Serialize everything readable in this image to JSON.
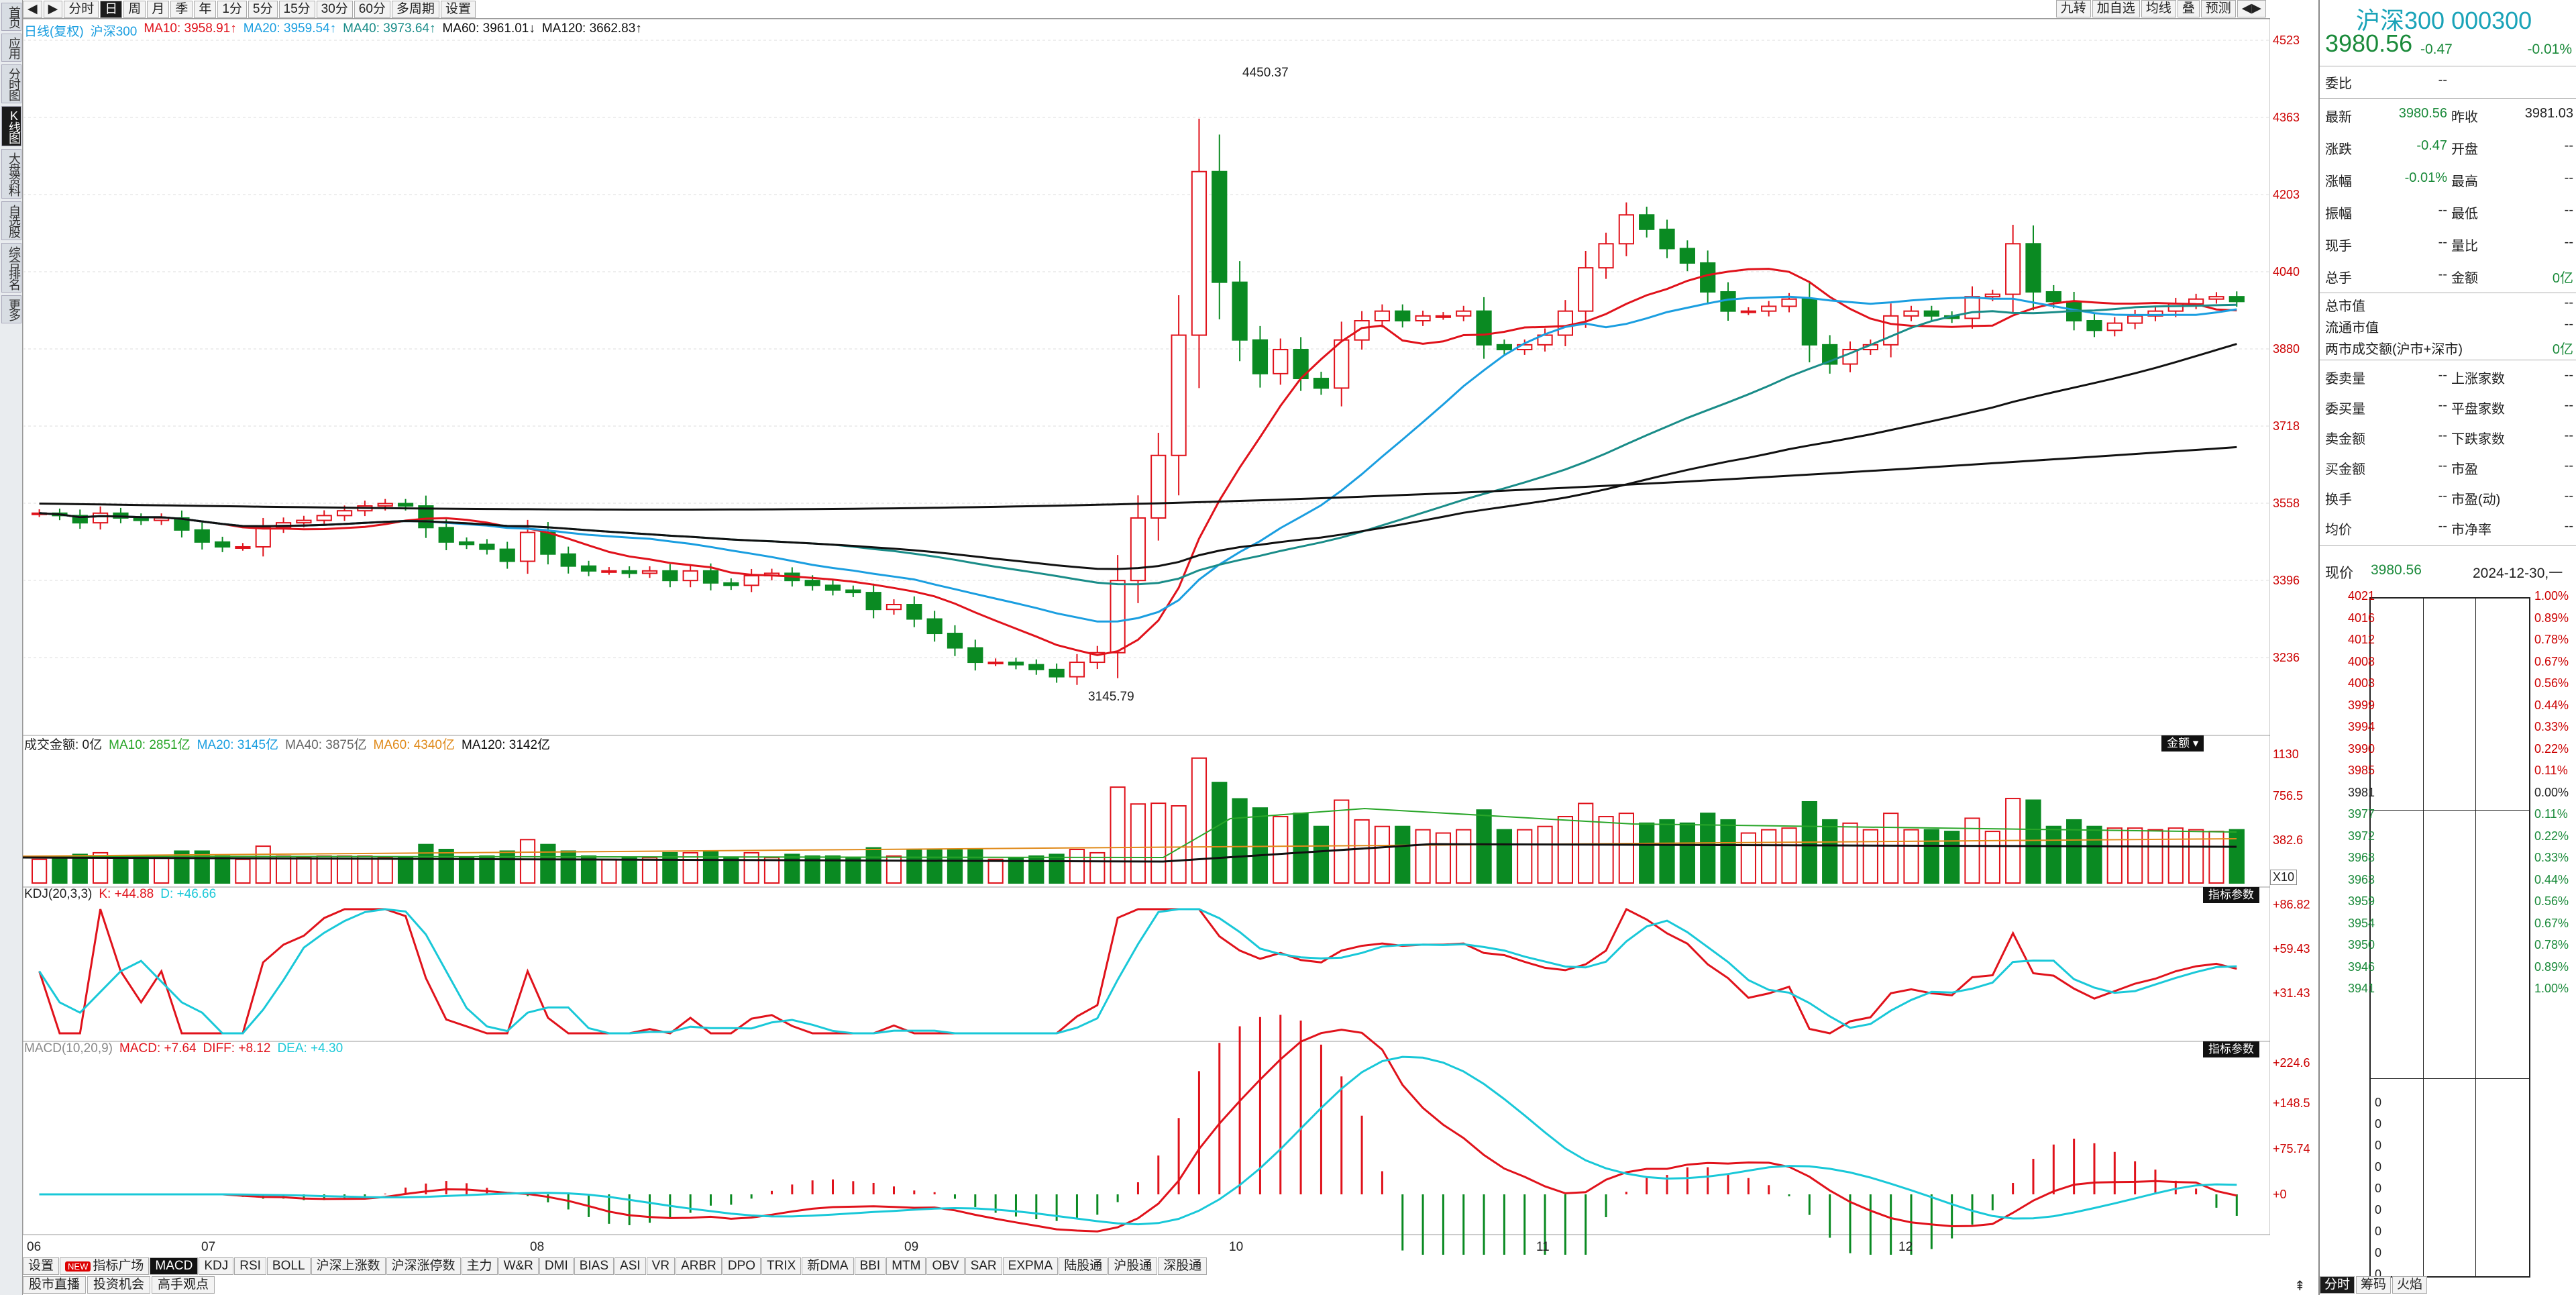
{
  "left_rail": [
    "首页",
    "应用",
    "分时图",
    "K线图",
    "大盘资料",
    "自选股",
    "综合排名",
    "更多"
  ],
  "left_rail_active": 3,
  "topbar": {
    "nav_icon_left": "◀",
    "nav_icon_right": "▶",
    "periods": [
      "分时",
      "日",
      "周",
      "月",
      "季",
      "年",
      "1分",
      "5分",
      "15分",
      "30分",
      "60分",
      "多周期",
      "设置"
    ],
    "active_period": 1,
    "right_buttons": [
      "九转",
      "加自选",
      "均线",
      "叠",
      "预测"
    ],
    "right_icon": "◀▶"
  },
  "main_legend": {
    "title": "日线(复权)",
    "name": "沪深300",
    "ma10": "MA10: 3958.91↑",
    "ma20": "MA20: 3959.54↑",
    "ma40": "MA40: 3973.64↑",
    "ma60": "MA60: 3961.01↓",
    "ma120": "MA120: 3662.83↑"
  },
  "price_axis": [
    "4523",
    "4363",
    "4203",
    "4040",
    "3880",
    "3718",
    "3558",
    "3396",
    "3236"
  ],
  "annotations": {
    "high": "4450.37",
    "low": "3145.79"
  },
  "x_labels": [
    "06",
    "07",
    "08",
    "09",
    "10",
    "11",
    "12"
  ],
  "volume_legend": {
    "label": "成交金额: 0亿",
    "ma10": "MA10: 2851亿",
    "ma20": "MA20: 3145亿",
    "ma40": "MA40: 3875亿",
    "ma60": "MA60: 4340亿",
    "ma120": "MA120: 3142亿"
  },
  "volume_axis": [
    "1130",
    "756.5",
    "382.6",
    "X10"
  ],
  "volume_tag": "金额",
  "kdj_legend": {
    "label": "KDJ(20,3,3)",
    "k": "K: +44.88",
    "d": "D: +46.66"
  },
  "kdj_axis": [
    "+86.82",
    "+59.43",
    "+31.43"
  ],
  "macd_legend": {
    "label": "MACD(10,20,9)",
    "macd": "MACD: +7.64",
    "diff": "DIFF: +8.12",
    "dea": "DEA: +4.30"
  },
  "macd_axis": [
    "+224.6",
    "+148.5",
    "+75.74",
    "+0"
  ],
  "indicator_tag": "指标参数",
  "indicator_tabs": [
    "设置",
    "指标广场",
    "MACD",
    "KDJ",
    "RSI",
    "BOLL",
    "沪深上涨数",
    "沪深涨停数",
    "主力",
    "W&R",
    "DMI",
    "BIAS",
    "ASI",
    "VR",
    "ARBR",
    "DPO",
    "TRIX",
    "新DMA",
    "BBI",
    "MTM",
    "OBV",
    "SAR",
    "EXPMA",
    "陆股通",
    "沪股通",
    "深股通"
  ],
  "indicator_new_badge": "NEW",
  "active_indicator": 2,
  "bottom_buttons": [
    "股市直播",
    "投资机会",
    "高手观点"
  ],
  "right_panel": {
    "title": "沪深300 000300",
    "price": "3980.56",
    "change": "-0.47",
    "change_pct": "-0.01%",
    "weibi_label": "委比",
    "weibi_value": "--",
    "rows": [
      {
        "l1": "最新",
        "v1": "3980.56",
        "l2": "昨收",
        "v2": "3981.03"
      },
      {
        "l1": "涨跌",
        "v1": "-0.47",
        "l2": "开盘",
        "v2": "--"
      },
      {
        "l1": "涨幅",
        "v1": "-0.01%",
        "l2": "最高",
        "v2": "--"
      },
      {
        "l1": "振幅",
        "v1": "--",
        "l2": "最低",
        "v2": "--"
      },
      {
        "l1": "现手",
        "v1": "--",
        "l2": "量比",
        "v2": "--"
      },
      {
        "l1": "总手",
        "v1": "--",
        "l2": "金额",
        "v2": "0亿"
      }
    ],
    "cap1": "总市值",
    "cap1_v": "--",
    "cap2": "流通市值",
    "cap2_v": "--",
    "cap3": "两市成交额(沪市+深市)",
    "cap3_v": "0亿",
    "rows2": [
      {
        "l1": "委卖量",
        "v1": "--",
        "l2": "上涨家数",
        "v2": "--"
      },
      {
        "l1": "委买量",
        "v1": "--",
        "l2": "平盘家数",
        "v2": "--"
      },
      {
        "l1": "卖金额",
        "v1": "--",
        "l2": "下跌家数",
        "v2": "--"
      },
      {
        "l1": "买金额",
        "v1": "--",
        "l2": "市盈",
        "v2": "--"
      },
      {
        "l1": "换手",
        "v1": "--",
        "l2": "市盈(动)",
        "v2": "--"
      },
      {
        "l1": "均价",
        "v1": "--",
        "l2": "市净率",
        "v2": "--"
      }
    ],
    "now_label": "现价",
    "now_price": "3980.56",
    "now_date": "2024-12-30,一",
    "price_ticks": [
      "4021",
      "4016",
      "4012",
      "4008",
      "4003",
      "3999",
      "3994",
      "3990",
      "3985",
      "3981",
      "3977",
      "3972",
      "3968",
      "3963",
      "3959",
      "3954",
      "3950",
      "3946",
      "3941"
    ],
    "pct_ticks": [
      "1.00%",
      "0.89%",
      "0.78%",
      "0.67%",
      "0.56%",
      "0.44%",
      "0.33%",
      "0.22%",
      "0.11%",
      "0.00%",
      "0.11%",
      "0.22%",
      "0.33%",
      "0.44%",
      "0.56%",
      "0.67%",
      "0.78%",
      "0.89%",
      "1.00%"
    ],
    "vol_zero": "0",
    "tabs": [
      "分时",
      "筹码",
      "火焰"
    ]
  },
  "colors": {
    "up": "#e0121b",
    "down": "#0a8a22",
    "ma10": "#e0121b",
    "ma20": "#1a9ee0",
    "ma40": "#198c88",
    "ma60": "#111111",
    "ma120": "#111111",
    "kdj_k": "#e0121b",
    "kdj_d": "#19c8d8"
  },
  "chart_data": {
    "type": "candlestick",
    "title": "沪深300 日线(复权)",
    "x_labels": [
      "06",
      "07",
      "08",
      "09",
      "10",
      "11",
      "12"
    ],
    "ylim": [
      3145,
      4523
    ],
    "candles_close_approx": [
      3540,
      3535,
      3520,
      3540,
      3530,
      3525,
      3530,
      3505,
      3480,
      3470,
      3470,
      3510,
      3520,
      3525,
      3535,
      3545,
      3555,
      3560,
      3555,
      3510,
      3480,
      3475,
      3465,
      3440,
      3500,
      3455,
      3430,
      3420,
      3420,
      3415,
      3420,
      3400,
      3420,
      3395,
      3390,
      3410,
      3415,
      3400,
      3390,
      3380,
      3375,
      3340,
      3350,
      3320,
      3290,
      3260,
      3230,
      3230,
      3225,
      3215,
      3200,
      3230,
      3250,
      3400,
      3530,
      3660,
      3910,
      4250,
      4020,
      3900,
      3830,
      3880,
      3820,
      3800,
      3900,
      3940,
      3960,
      3940,
      3950,
      3950,
      3960,
      3890,
      3880,
      3890,
      3910,
      3960,
      4050,
      4100,
      4160,
      4130,
      4090,
      4060,
      4000,
      3960,
      3960,
      3970,
      3985,
      3890,
      3850,
      3880,
      3890,
      3950,
      3960,
      3950,
      3945,
      3990,
      3995,
      4100,
      4000,
      3980,
      3940,
      3920,
      3935,
      3950,
      3960,
      3975,
      3985,
      3990,
      3980
    ]
  }
}
